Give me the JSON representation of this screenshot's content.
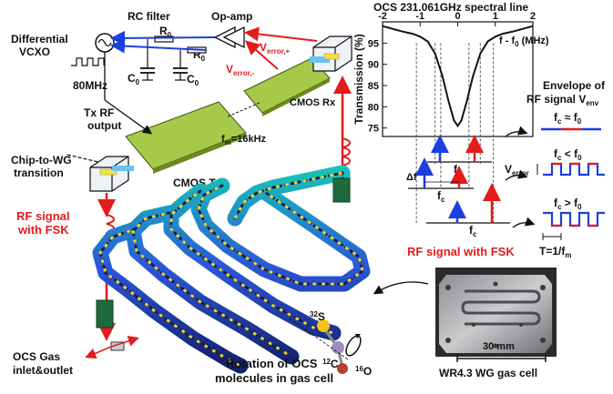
{
  "labels": {
    "rc_filter": "RC filter",
    "op_amp": "Op-amp",
    "r0_a": "R",
    "r0_b": "R",
    "c0_a": "C",
    "c0_b": "C",
    "sub0": "0",
    "v_error_plus": "V",
    "v_error_plus_sub": "error,+",
    "v_error_minus": "V",
    "v_error_minus_sub": "error,-",
    "differential": "Differential",
    "vcxo": "VCXO",
    "mhz80": "80MHz",
    "tx_rf_1": "Tx RF",
    "tx_rf_2": "output",
    "fm": "f",
    "fm_sub": "m",
    "fm_val": "=16kHz",
    "cmos_rx": "CMOS Rx",
    "cmos_tx": "CMOS Tx",
    "chip_wg_1": "Chip-to-WG",
    "chip_wg_2": "transition",
    "rf_fsk_left_1": "RF signal",
    "rf_fsk_left_2": "with FSK",
    "ocs_gas_1": "OCS Gas",
    "ocs_gas_2": "inlet&outlet",
    "rotation_1": "Rotation of OCS",
    "rotation_2": "molecules in gas cell",
    "atom_s": "S",
    "atom_s_mass": "32",
    "atom_c": "C",
    "atom_c_mass": "12",
    "atom_o": "O",
    "atom_o_mass": "16",
    "scale": "30 mm",
    "gas_cell": "WR4.3 WG gas cell",
    "rf_fsk_right": "RF signal with FSK",
    "envelope_1": "Envelope of",
    "envelope_2": "RF signal V",
    "envelope_sub": "env",
    "fc_eq": "f",
    "fc_eq_rest": "≈ f",
    "fc_lt_rest": "< f",
    "fc_gt_rest": "> f",
    "v_error": "V",
    "v_error_sub": "error",
    "period": "T=1/f",
    "period_sub": "m",
    "delta_f": "Δf",
    "fc": "f",
    "fc_sub": "c",
    "f0_sub": "0"
  },
  "chart_data": {
    "type": "line",
    "title": "OCS 231.061GHz spectral line",
    "xlabel": "f - f",
    "xlabel_sub": "0",
    "xlabel_unit": " (MHz)",
    "ylabel": "Transmission (%)",
    "xlim": [
      -2,
      2
    ],
    "ylim": [
      73,
      100
    ],
    "xticks": [
      -2,
      -1,
      0,
      1,
      2
    ],
    "yticks": [
      75,
      80,
      85,
      90,
      95
    ],
    "x": [
      -2.0,
      -1.5,
      -1.2,
      -1.0,
      -0.8,
      -0.6,
      -0.4,
      -0.25,
      -0.1,
      0.0,
      0.1,
      0.25,
      0.4,
      0.6,
      0.8,
      1.0,
      1.2,
      1.5,
      2.0
    ],
    "y": [
      99.0,
      97.8,
      97.2,
      96.5,
      95.4,
      92.5,
      87.0,
      81.5,
      76.8,
      75.5,
      76.8,
      81.5,
      87.0,
      92.5,
      95.4,
      96.5,
      97.2,
      97.8,
      99.0
    ]
  },
  "colors": {
    "red": "#e21b1b",
    "blue": "#1d3fe0",
    "chip": "#a8c84a"
  }
}
